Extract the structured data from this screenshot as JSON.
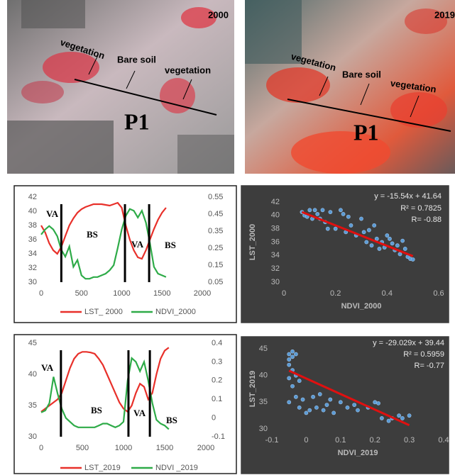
{
  "images": [
    {
      "year": "2000",
      "labels": [
        "vegetation",
        "Bare soil",
        "vegetation"
      ],
      "profile": "P1"
    },
    {
      "year": "2019",
      "labels": [
        "vegetation",
        "Bare soil",
        "vegetation"
      ],
      "profile": "P1"
    }
  ],
  "chart_data": [
    {
      "type": "line",
      "x": [
        0,
        50,
        100,
        150,
        200,
        250,
        300,
        350,
        400,
        450,
        500,
        550,
        600,
        650,
        700,
        750,
        800,
        850,
        900,
        950,
        1000,
        1050,
        1100,
        1150,
        1200,
        1250,
        1300,
        1350,
        1400,
        1450,
        1500,
        1550
      ],
      "xlim": [
        0,
        2000
      ],
      "xticks": [
        0,
        500,
        1000,
        1500,
        2000
      ],
      "ylim": [
        30,
        42
      ],
      "yticks": [
        30,
        32,
        34,
        36,
        38,
        40,
        42
      ],
      "y2lim": [
        0.05,
        0.55
      ],
      "y2ticks": [
        0.05,
        0.15,
        0.25,
        0.35,
        0.45,
        0.55
      ],
      "series": [
        {
          "name": "LST_ 2000",
          "color": "#e8302a",
          "values": [
            38,
            37,
            35.5,
            34.5,
            34,
            35,
            36.5,
            38,
            39,
            39.8,
            40.3,
            40.6,
            40.8,
            41,
            41,
            41,
            40.9,
            40.8,
            41,
            41.2,
            40.5,
            38,
            36,
            34.5,
            33.5,
            33.3,
            34.5,
            36,
            37.5,
            38.8,
            39.8,
            40.5
          ]
        },
        {
          "name": "NDVI_2000",
          "color": "#2eab48",
          "axis": "y2",
          "values": [
            0.33,
            0.36,
            0.38,
            0.36,
            0.32,
            0.24,
            0.2,
            0.26,
            0.14,
            0.18,
            0.09,
            0.07,
            0.07,
            0.08,
            0.08,
            0.09,
            0.1,
            0.12,
            0.15,
            0.25,
            0.36,
            0.44,
            0.48,
            0.47,
            0.43,
            0.47,
            0.4,
            0.28,
            0.14,
            0.1,
            0.09,
            0.08
          ]
        }
      ],
      "dividers": [
        250,
        1040,
        1340
      ],
      "annotations": [
        "VA",
        "BS",
        "VA",
        "BS"
      ]
    },
    {
      "type": "scatter",
      "x": [
        0.07,
        0.08,
        0.09,
        0.1,
        0.11,
        0.12,
        0.13,
        0.15,
        0.16,
        0.17,
        0.18,
        0.2,
        0.22,
        0.23,
        0.25,
        0.26,
        0.28,
        0.3,
        0.31,
        0.32,
        0.33,
        0.35,
        0.36,
        0.37,
        0.38,
        0.39,
        0.4,
        0.41,
        0.42,
        0.43,
        0.44,
        0.45,
        0.46,
        0.47,
        0.48,
        0.49,
        0.5,
        0.24,
        0.14,
        0.34
      ],
      "values": [
        40.5,
        40,
        39.8,
        40.8,
        39.5,
        40.8,
        40.2,
        40.8,
        39,
        38,
        40.5,
        38,
        40.8,
        40.2,
        39.8,
        38.5,
        37,
        39.5,
        37.5,
        36,
        37.8,
        38.5,
        36.5,
        35,
        36,
        35.2,
        37,
        36.5,
        35.8,
        34.8,
        35.5,
        34.2,
        36.2,
        35,
        33.8,
        33.5,
        33.4,
        37.5,
        39.5,
        35.5
      ],
      "color": "#5b9bd5",
      "xlim": [
        0,
        0.6
      ],
      "xticks": [
        0,
        0.2,
        0.4,
        0.6
      ],
      "ylim": [
        30,
        42
      ],
      "yticks": [
        30,
        32,
        34,
        36,
        38,
        40,
        42
      ],
      "x_label": "NDVI_2000",
      "y_label": "LST_2000",
      "trendline": {
        "color": "#e01010",
        "x": [
          0.07,
          0.5
        ],
        "values": [
          40.5,
          33.9
        ]
      },
      "annotations": [
        "y = -15.54x + 41.64",
        "R² = 0.7825",
        "R= -0.88"
      ]
    },
    {
      "type": "line",
      "x": [
        0,
        50,
        100,
        150,
        200,
        250,
        300,
        350,
        400,
        450,
        500,
        550,
        600,
        650,
        700,
        750,
        800,
        850,
        900,
        950,
        1000,
        1050,
        1100,
        1150,
        1200,
        1250,
        1300,
        1350,
        1400,
        1450,
        1500,
        1550
      ],
      "xlim": [
        0,
        2000
      ],
      "xticks": [
        0,
        500,
        1000,
        1500,
        2000
      ],
      "ylim": [
        30,
        45
      ],
      "yticks": [
        30,
        35,
        40,
        45
      ],
      "y2lim": [
        -0.1,
        0.4
      ],
      "y2ticks": [
        -0.1,
        0,
        0.1,
        0.2,
        0.3,
        0.4
      ],
      "series": [
        {
          "name": "LST_2019",
          "color": "#e8302a",
          "values": [
            34,
            34.5,
            35,
            35.5,
            36,
            37,
            39,
            41,
            42.5,
            43.3,
            43.6,
            43.6,
            43.5,
            43.3,
            42.5,
            41.5,
            40,
            38.5,
            37,
            35.5,
            34.5,
            34,
            35,
            37,
            38.5,
            38,
            36,
            37,
            40,
            42.5,
            43.8,
            44.3
          ]
        },
        {
          "name": "NDVI _2019",
          "color": "#2eab48",
          "axis": "y2",
          "values": [
            0.03,
            0.04,
            0.08,
            0.22,
            0.13,
            0.05,
            0,
            -0.02,
            -0.04,
            -0.05,
            -0.05,
            -0.05,
            -0.05,
            -0.05,
            -0.04,
            -0.03,
            -0.03,
            -0.04,
            -0.05,
            -0.04,
            -0.02,
            0.2,
            0.32,
            0.3,
            0.25,
            0.3,
            0.2,
            0.08,
            -0.01,
            -0.03,
            -0.04,
            -0.06
          ]
        }
      ],
      "dividers": [
        240,
        1060,
        1320
      ],
      "annotations": [
        "VA",
        "BS",
        "VA",
        "BS"
      ]
    },
    {
      "type": "scatter",
      "x": [
        -0.05,
        -0.05,
        -0.04,
        -0.04,
        -0.05,
        -0.03,
        -0.04,
        -0.05,
        -0.03,
        -0.04,
        -0.02,
        -0.03,
        -0.05,
        -0.02,
        0,
        -0.01,
        0.02,
        0.03,
        0.05,
        0.06,
        0.04,
        0.08,
        0.1,
        0.12,
        0.14,
        0.15,
        0.18,
        0.2,
        0.21,
        0.22,
        0.24,
        0.25,
        0.27,
        0.28,
        0.3,
        0.07,
        0.01
      ],
      "values": [
        43,
        44,
        44.5,
        43.5,
        42,
        44,
        41,
        39.5,
        40,
        38,
        39,
        36,
        35,
        34,
        33,
        35.5,
        36,
        34,
        33.5,
        34.5,
        36.5,
        33,
        35,
        34,
        34.5,
        33.5,
        34,
        35,
        34.8,
        32,
        31.5,
        32,
        32.5,
        32,
        32.5,
        35.5,
        33.5
      ],
      "color": "#5b9bd5",
      "xlim": [
        -0.1,
        0.4
      ],
      "xticks": [
        -0.1,
        0,
        0.1,
        0.2,
        0.3,
        0.4
      ],
      "ylim": [
        30,
        45
      ],
      "yticks": [
        30,
        35,
        40,
        45
      ],
      "x_label": "NDVI_2019",
      "y_label": "LST_2019",
      "trendline": {
        "color": "#e01010",
        "x": [
          -0.05,
          0.3
        ],
        "values": [
          40.9,
          30.7
        ]
      },
      "annotations": [
        "y = -29.029x + 39.44",
        "R² = 0.5959",
        "R= -0.77"
      ]
    }
  ]
}
